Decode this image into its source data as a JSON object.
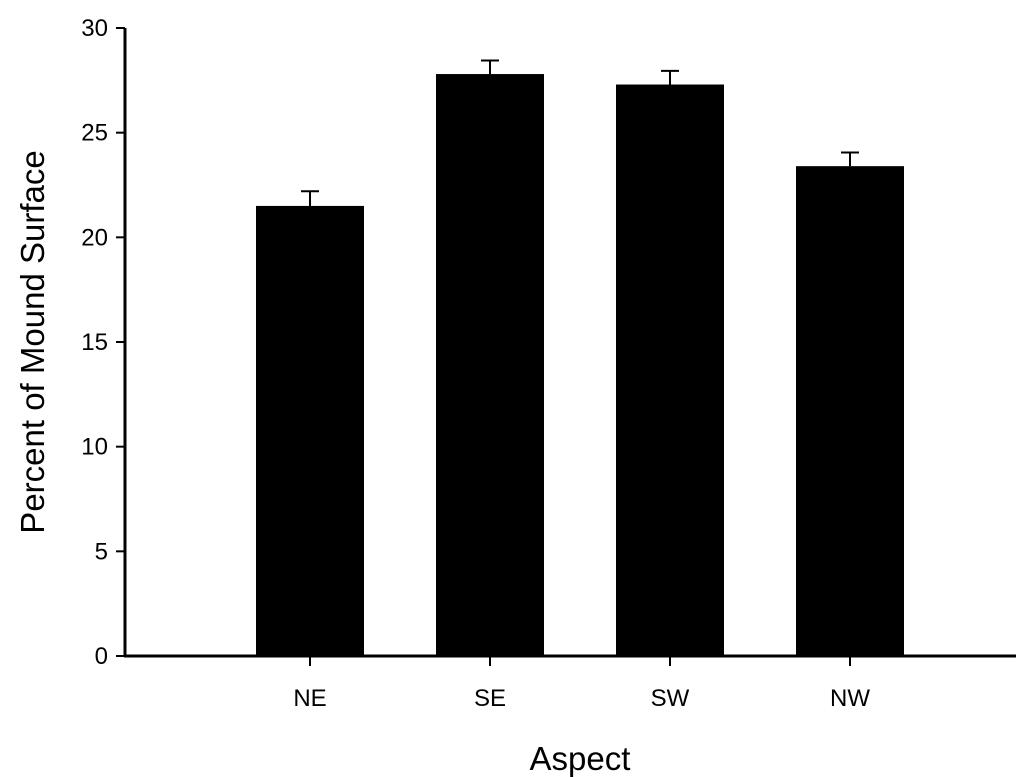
{
  "chart_data": {
    "type": "bar",
    "title": "",
    "xlabel": "Aspect",
    "ylabel": "Percent of Mound Surface",
    "categories": [
      "NE",
      "SE",
      "SW",
      "NW"
    ],
    "values": [
      21.5,
      27.8,
      27.3,
      23.4
    ],
    "error": [
      0.7,
      0.65,
      0.65,
      0.65
    ],
    "ylim": [
      0,
      30
    ],
    "yticks": [
      0,
      5,
      10,
      15,
      20,
      25,
      30
    ],
    "grid": false,
    "legend": "none",
    "colors": {
      "bar": "#000000",
      "axis": "#000000",
      "background": "#ffffff"
    }
  }
}
